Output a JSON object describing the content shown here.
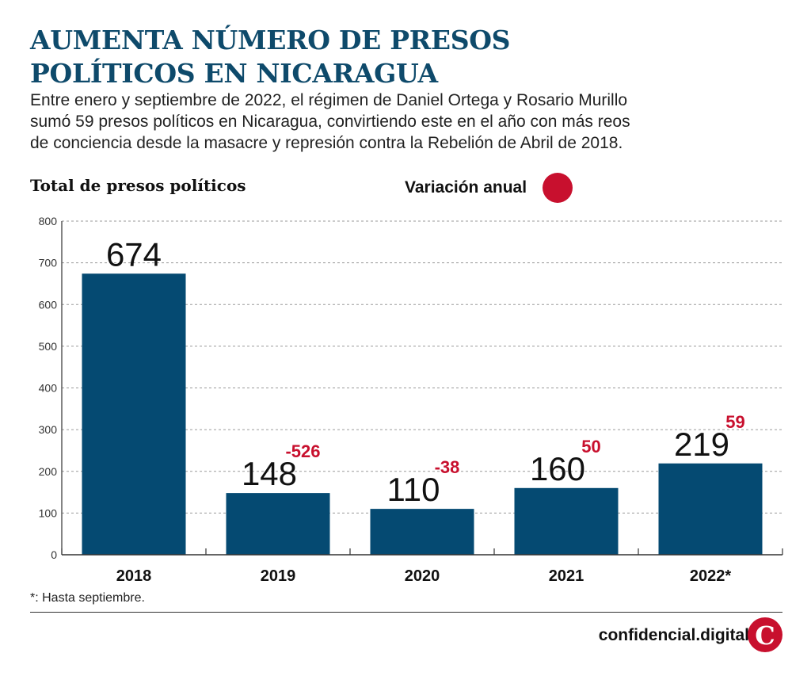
{
  "header": {
    "title_line1": "AUMENTA NÚMERO DE PRESOS",
    "title_line2": "POLÍTICOS EN NICARAGUA",
    "subtitle_line1": "Entre enero y septiembre de 2022, el régimen de Daniel Ortega y Rosario Murillo",
    "subtitle_line2": "sumó 59 presos políticos en Nicaragua, convirtiendo este en el año con más reos",
    "subtitle_line3": "de conciencia desde la masacre y represión contra la Rebelión de Abril de 2018."
  },
  "legend": {
    "label": "Variación anual",
    "color": "#c8102e"
  },
  "footnote": "*: Hasta septiembre.",
  "brand": {
    "name": "confidencial.digital",
    "logo_letter": "C",
    "color": "#c8102e"
  },
  "chart_data": {
    "type": "bar",
    "ylabel": "Total de presos políticos",
    "categories": [
      "2018",
      "2019",
      "2020",
      "2021",
      "2022*"
    ],
    "values": [
      674,
      148,
      110,
      160,
      219
    ],
    "variation": [
      null,
      "-526",
      "-38",
      "50",
      "59"
    ],
    "ylim": [
      0,
      800
    ],
    "yticks": [
      0,
      100,
      200,
      300,
      400,
      500,
      600,
      700,
      800
    ],
    "grid": true,
    "bar_color": "#054a72",
    "variation_color": "#c8102e"
  }
}
